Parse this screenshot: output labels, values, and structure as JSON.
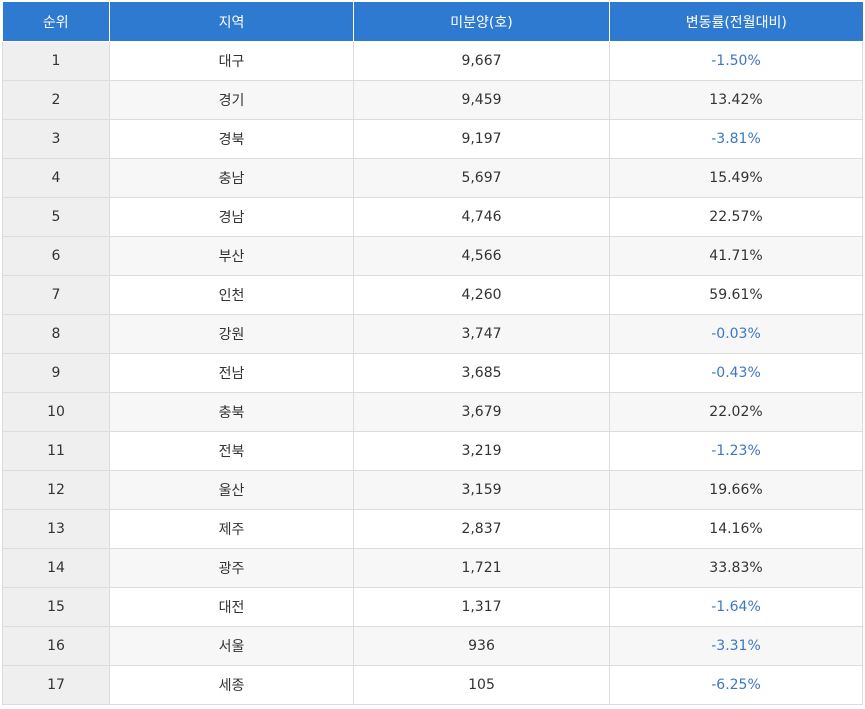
{
  "table": {
    "headers": {
      "rank": "순위",
      "region": "지역",
      "unsold": "미분양(호)",
      "change": "변동률(전월대비)"
    },
    "rows": [
      {
        "rank": "1",
        "region": "대구",
        "unsold": "9,667",
        "change": "-1.50%"
      },
      {
        "rank": "2",
        "region": "경기",
        "unsold": "9,459",
        "change": "13.42%"
      },
      {
        "rank": "3",
        "region": "경북",
        "unsold": "9,197",
        "change": "-3.81%"
      },
      {
        "rank": "4",
        "region": "충남",
        "unsold": "5,697",
        "change": "15.49%"
      },
      {
        "rank": "5",
        "region": "경남",
        "unsold": "4,746",
        "change": "22.57%"
      },
      {
        "rank": "6",
        "region": "부산",
        "unsold": "4,566",
        "change": "41.71%"
      },
      {
        "rank": "7",
        "region": "인천",
        "unsold": "4,260",
        "change": "59.61%"
      },
      {
        "rank": "8",
        "region": "강원",
        "unsold": "3,747",
        "change": "-0.03%"
      },
      {
        "rank": "9",
        "region": "전남",
        "unsold": "3,685",
        "change": "-0.43%"
      },
      {
        "rank": "10",
        "region": "충북",
        "unsold": "3,679",
        "change": "22.02%"
      },
      {
        "rank": "11",
        "region": "전북",
        "unsold": "3,219",
        "change": "-1.23%"
      },
      {
        "rank": "12",
        "region": "울산",
        "unsold": "3,159",
        "change": "19.66%"
      },
      {
        "rank": "13",
        "region": "제주",
        "unsold": "2,837",
        "change": "14.16%"
      },
      {
        "rank": "14",
        "region": "광주",
        "unsold": "1,721",
        "change": "33.83%"
      },
      {
        "rank": "15",
        "region": "대전",
        "unsold": "1,317",
        "change": "-1.64%"
      },
      {
        "rank": "16",
        "region": "서울",
        "unsold": "936",
        "change": "-3.31%"
      },
      {
        "rank": "17",
        "region": "세종",
        "unsold": "105",
        "change": "-6.25%"
      }
    ]
  },
  "colors": {
    "header_bg": "#2f7ad1",
    "negative_text": "#3b78c3",
    "positive_text": "#333333"
  }
}
